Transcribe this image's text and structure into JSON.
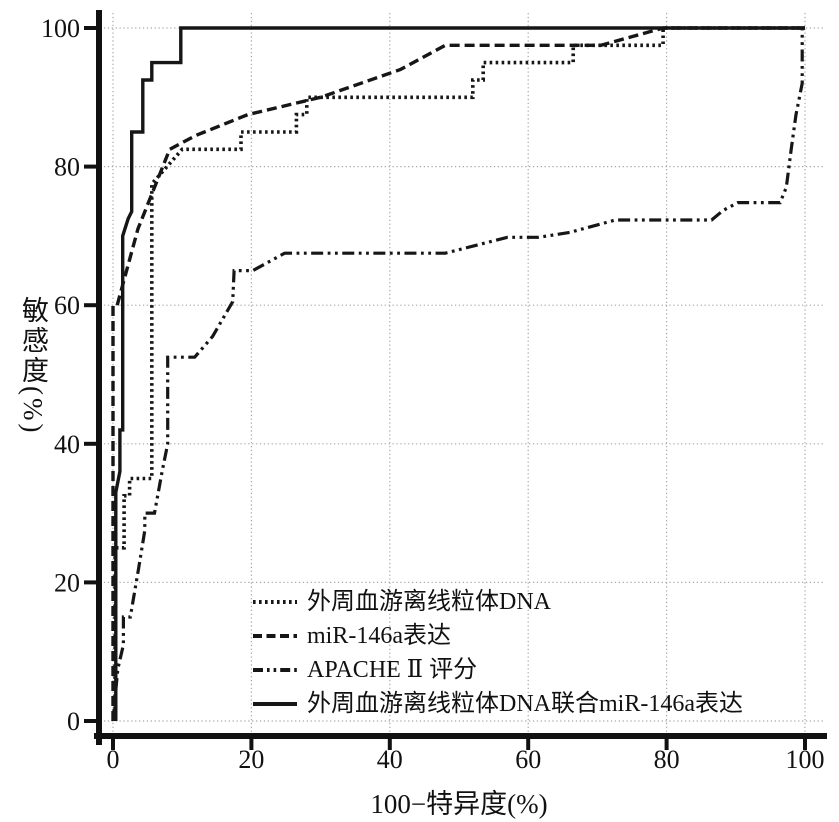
{
  "figure": {
    "background": "#ffffff",
    "description_visible_text_only": true
  },
  "colors": {
    "curve": "#161616",
    "grid": "#a9a9a9",
    "axis": "#111111",
    "text": "#111111"
  },
  "chart_data": {
    "type": "line",
    "subtype": "roc-step-curves",
    "title": "",
    "xlabel": "100−特异度(%)",
    "ylabel": "敏感度(%)",
    "xlim": [
      0,
      100
    ],
    "ylim": [
      0,
      100
    ],
    "x_ticks": [
      0,
      20,
      40,
      60,
      80,
      100
    ],
    "y_ticks": [
      0,
      20,
      40,
      60,
      80,
      100
    ],
    "grid": true,
    "grid_style": "dotted",
    "legend_position": "inside-lower-right",
    "series": [
      {
        "name": "mtdna",
        "label": "外周血游离线粒体DNA",
        "dash": "dotted",
        "points": [
          [
            0.3,
            0
          ],
          [
            0.3,
            25
          ],
          [
            1.6,
            25
          ],
          [
            1.6,
            32.5
          ],
          [
            2.4,
            32.5
          ],
          [
            2.4,
            35
          ],
          [
            5.6,
            35
          ],
          [
            5.6,
            77.5
          ],
          [
            10,
            82.5
          ],
          [
            18.5,
            82.5
          ],
          [
            18.5,
            85
          ],
          [
            26.5,
            85
          ],
          [
            26.5,
            87.5
          ],
          [
            28,
            87.5
          ],
          [
            28,
            90
          ],
          [
            52,
            90
          ],
          [
            52,
            92.5
          ],
          [
            53.5,
            92.5
          ],
          [
            53.5,
            95
          ],
          [
            66.5,
            95
          ],
          [
            66.5,
            97.5
          ],
          [
            79.5,
            97.5
          ],
          [
            79.5,
            100
          ],
          [
            100,
            100
          ]
        ]
      },
      {
        "name": "mir146a",
        "label": "miR-146a表达",
        "dash": "dashed",
        "points": [
          [
            0,
            0
          ],
          [
            0,
            60
          ],
          [
            0.6,
            60
          ],
          [
            3.6,
            71
          ],
          [
            8.2,
            82.5
          ],
          [
            12,
            84.5
          ],
          [
            19.5,
            87.5
          ],
          [
            30,
            90
          ],
          [
            41.5,
            94
          ],
          [
            48,
            97.5
          ],
          [
            70.5,
            97.5
          ],
          [
            79.5,
            100
          ],
          [
            100,
            100
          ]
        ]
      },
      {
        "name": "apache2",
        "label": "APACHE Ⅱ 评分",
        "dash": "dashdotdot",
        "points": [
          [
            0,
            0
          ],
          [
            0.7,
            7.5
          ],
          [
            1.5,
            11
          ],
          [
            1.5,
            15
          ],
          [
            2.5,
            15
          ],
          [
            3.7,
            22
          ],
          [
            4.6,
            27.5
          ],
          [
            4.6,
            30
          ],
          [
            6,
            30
          ],
          [
            7.1,
            36
          ],
          [
            7.9,
            40
          ],
          [
            7.9,
            52.5
          ],
          [
            11.8,
            52.5
          ],
          [
            14.4,
            55.5
          ],
          [
            17.3,
            60.5
          ],
          [
            17.5,
            65
          ],
          [
            20.2,
            65
          ],
          [
            24.8,
            67.5
          ],
          [
            48,
            67.5
          ],
          [
            57,
            69.8
          ],
          [
            61.5,
            69.8
          ],
          [
            66,
            70.5
          ],
          [
            72.6,
            72.3
          ],
          [
            86.5,
            72.3
          ],
          [
            88.2,
            73.7
          ],
          [
            90.3,
            74.8
          ],
          [
            96.4,
            74.8
          ],
          [
            97.3,
            77
          ],
          [
            98,
            82.5
          ],
          [
            98.7,
            87.5
          ],
          [
            99.6,
            92
          ],
          [
            99.6,
            100
          ],
          [
            100,
            100
          ]
        ]
      },
      {
        "name": "combined",
        "label": "外周血游离线粒体DNA联合miR-146a表达",
        "dash": "solid",
        "points": [
          [
            0.4,
            0
          ],
          [
            0.4,
            33
          ],
          [
            1,
            36
          ],
          [
            1,
            42
          ],
          [
            1.4,
            42
          ],
          [
            1.4,
            70
          ],
          [
            2.2,
            72.5
          ],
          [
            2.7,
            73.5
          ],
          [
            2.7,
            85
          ],
          [
            4.3,
            85
          ],
          [
            4.3,
            92.5
          ],
          [
            5.6,
            92.5
          ],
          [
            5.6,
            95
          ],
          [
            9.8,
            95
          ],
          [
            9.8,
            100
          ],
          [
            100,
            100
          ]
        ]
      }
    ]
  }
}
